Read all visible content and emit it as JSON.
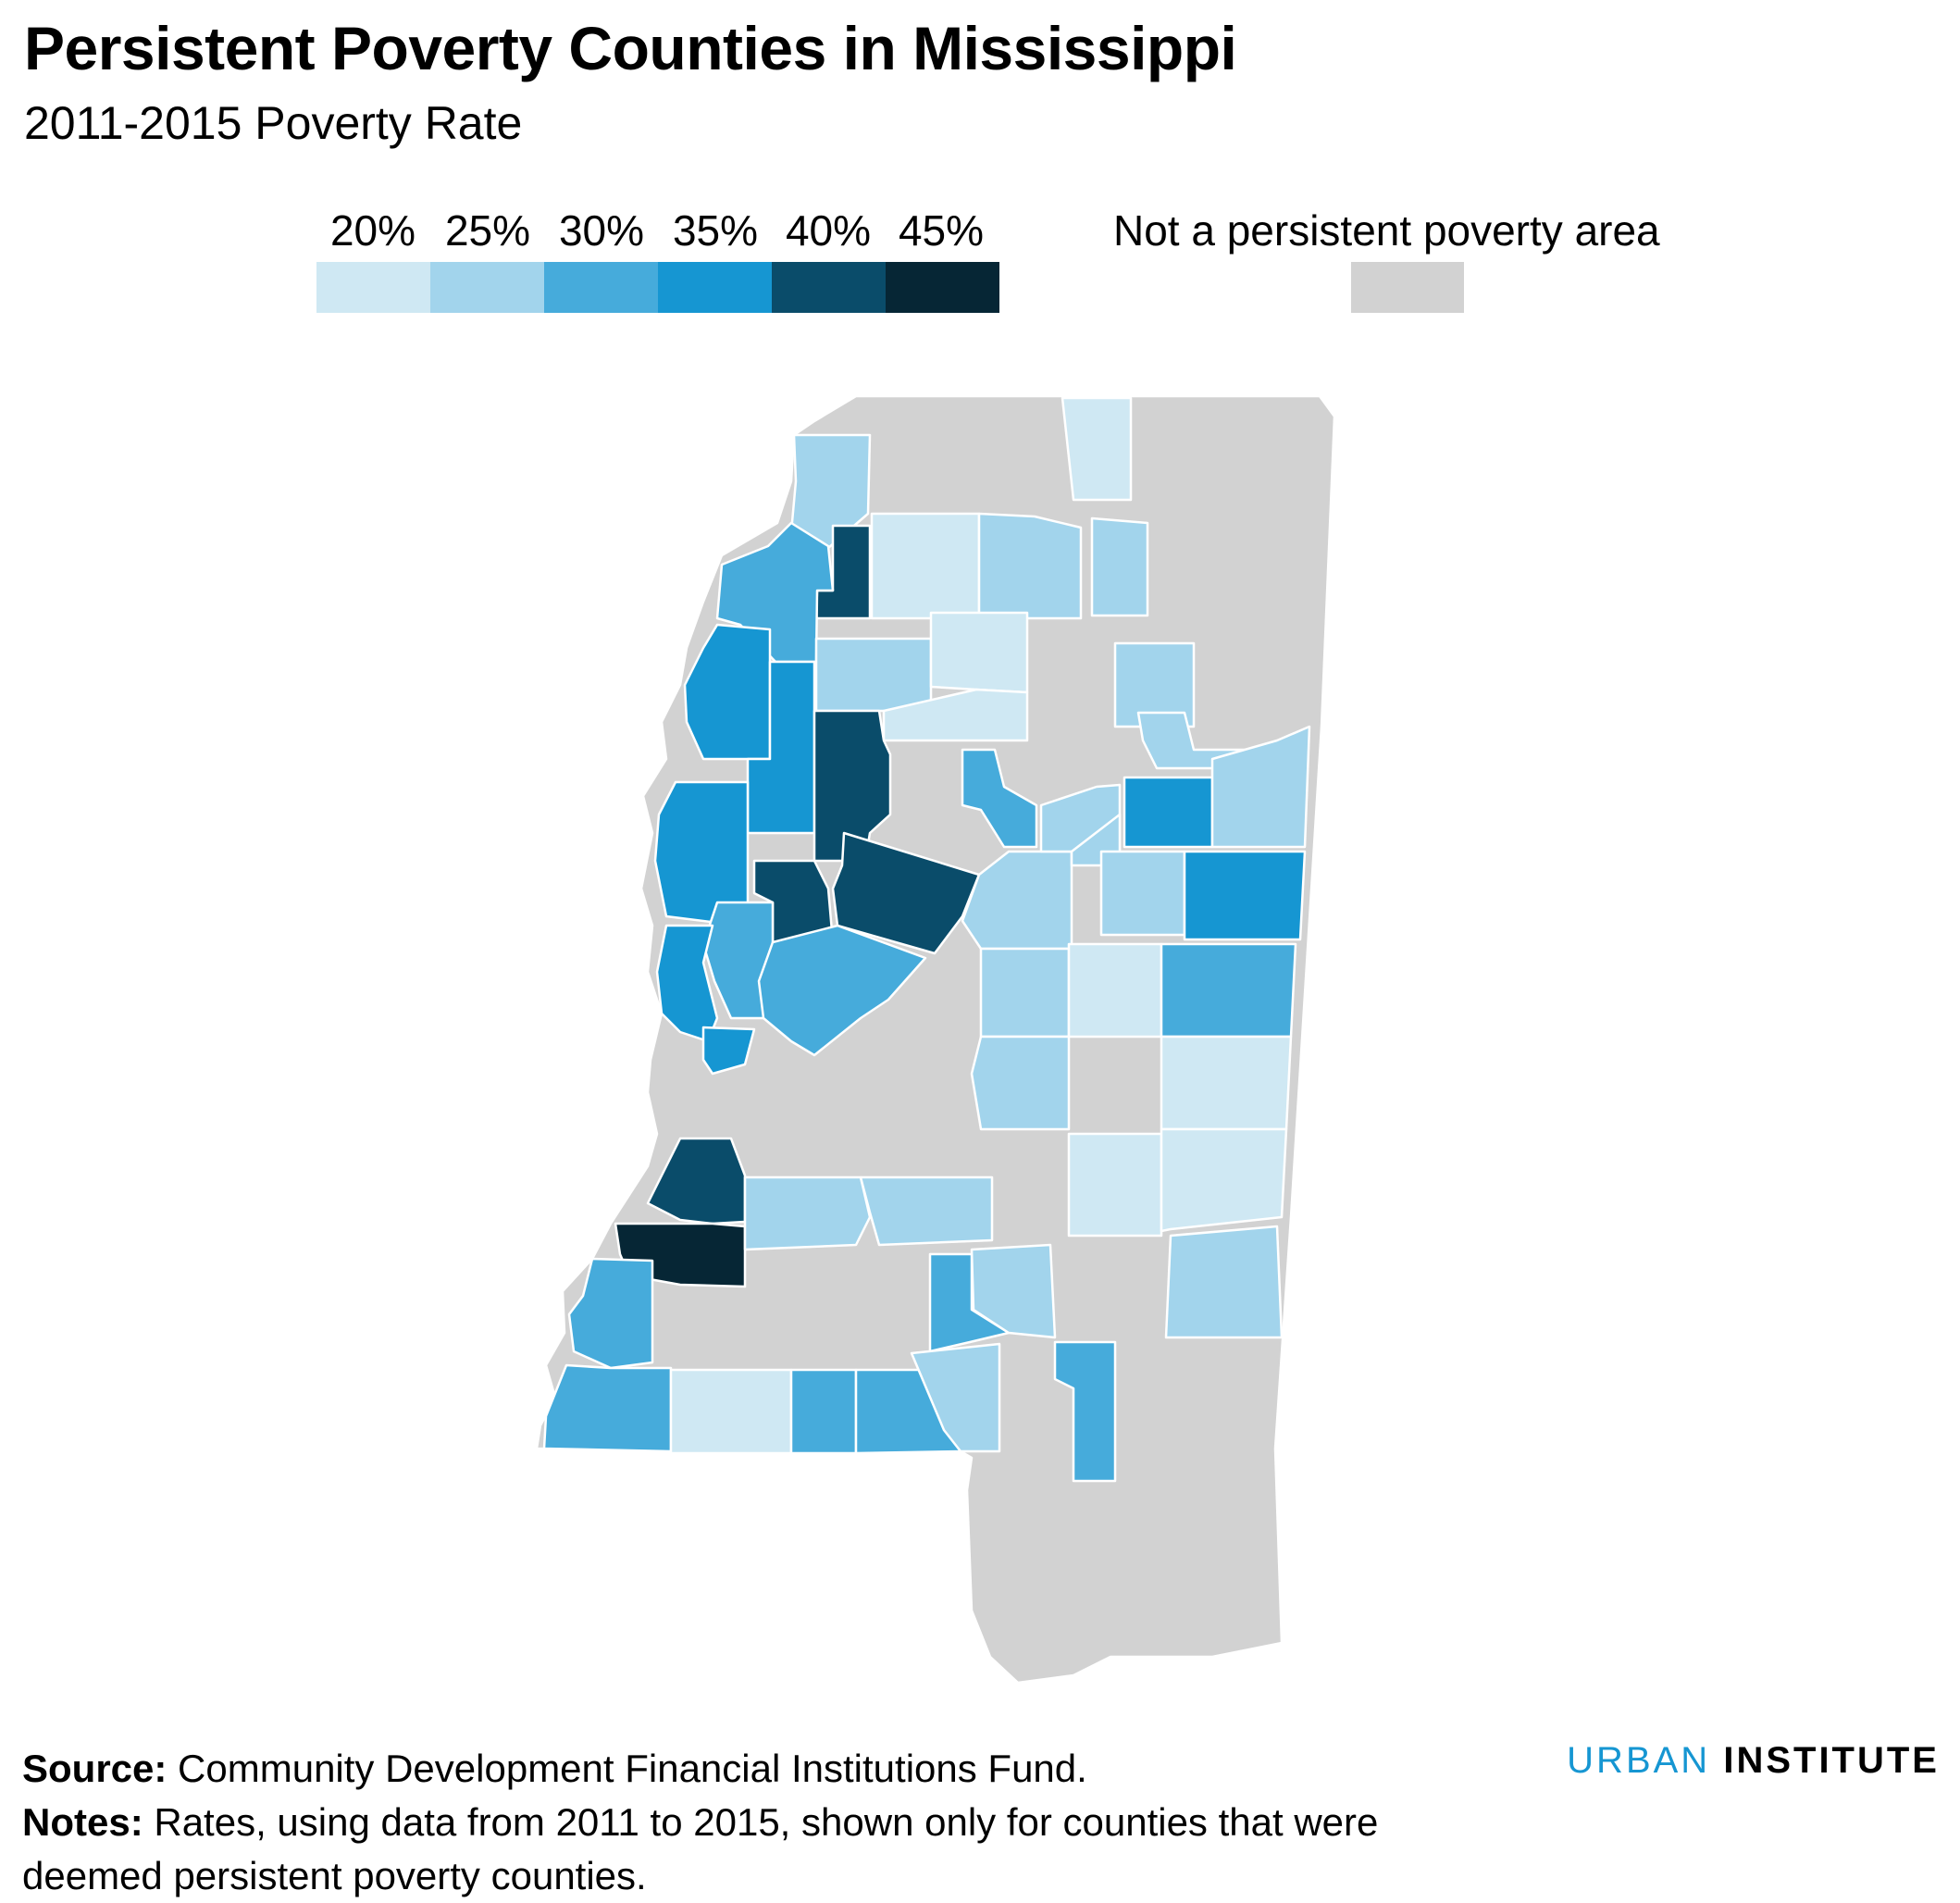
{
  "title": "Persistent Poverty Counties in Mississippi",
  "subtitle": "2011-2015 Poverty Rate",
  "legend": {
    "ticks": [
      "20%",
      "25%",
      "30%",
      "35%",
      "40%",
      "45%"
    ],
    "bins": [
      {
        "from": 20,
        "to": 25,
        "color": "#cfe8f3"
      },
      {
        "from": 25,
        "to": 30,
        "color": "#a2d4ec"
      },
      {
        "from": 30,
        "to": 35,
        "color": "#46abdb"
      },
      {
        "from": 35,
        "to": 40,
        "color": "#1696d2"
      },
      {
        "from": 40,
        "to": 45,
        "color": "#0a4c6a"
      },
      {
        "from": 45,
        "to": 50,
        "color": "#062635"
      }
    ],
    "na_label": "Not a persistent poverty area",
    "na_color": "#d2d2d2"
  },
  "map": {
    "state": "Mississippi",
    "border_color": "#ffffff"
  },
  "footer": {
    "source_label": "Source:",
    "source_text": " Community Development Financial Institutions Fund.",
    "notes_label": "Notes:",
    "notes_text": " Rates, using data from 2011 to 2015, shown only for counties that were deemed persistent poverty counties."
  },
  "brand": {
    "part1": "URBAN",
    "part2": "INSTITUTE"
  }
}
